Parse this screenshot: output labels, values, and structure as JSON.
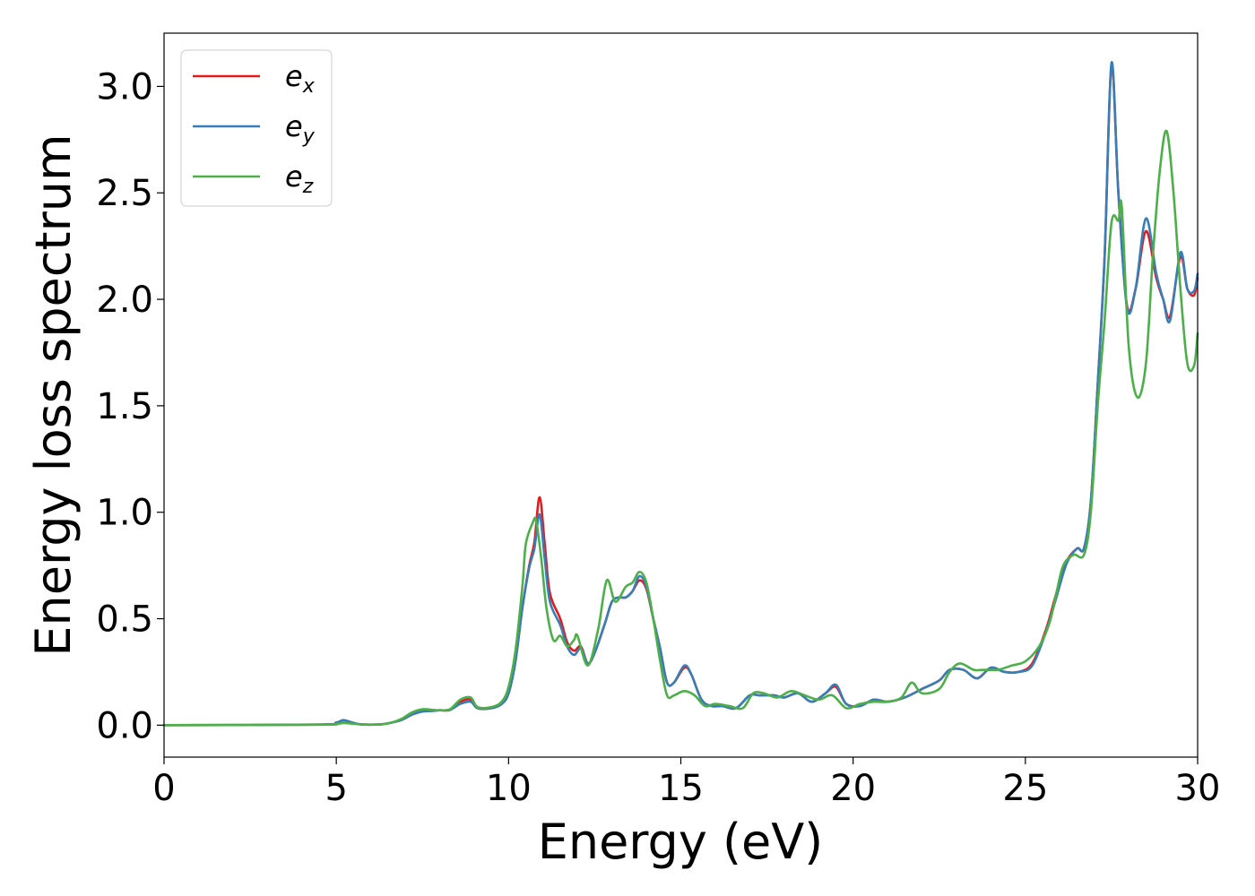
{
  "chart_data": {
    "type": "line",
    "title": "",
    "xlabel": "Energy (eV)",
    "ylabel": "Energy loss spectrum",
    "xlim": [
      0,
      30
    ],
    "ylim": [
      -0.15,
      3.25
    ],
    "xticks": [
      0,
      5,
      10,
      15,
      20,
      25,
      30
    ],
    "yticks": [
      0.0,
      0.5,
      1.0,
      1.5,
      2.0,
      2.5,
      3.0
    ],
    "xtick_labels": [
      "0",
      "5",
      "10",
      "15",
      "20",
      "25",
      "30"
    ],
    "ytick_labels": [
      "0.0",
      "0.5",
      "1.0",
      "1.5",
      "2.0",
      "2.5",
      "3.0"
    ],
    "grid": false,
    "legend_position": "top-left",
    "series": [
      {
        "name": "e_x",
        "legend_base": "e",
        "legend_sub": "x",
        "color": "#e41a1c",
        "points": [
          [
            0,
            0
          ],
          [
            4.5,
            0.003
          ],
          [
            5.0,
            0.012
          ],
          [
            5.2,
            0.022
          ],
          [
            5.4,
            0.015
          ],
          [
            5.7,
            0.004
          ],
          [
            6.3,
            0.004
          ],
          [
            6.6,
            0.012
          ],
          [
            6.9,
            0.025
          ],
          [
            7.2,
            0.05
          ],
          [
            7.5,
            0.065
          ],
          [
            7.8,
            0.068
          ],
          [
            8.0,
            0.07
          ],
          [
            8.3,
            0.072
          ],
          [
            8.6,
            0.11
          ],
          [
            8.9,
            0.12
          ],
          [
            9.1,
            0.08
          ],
          [
            9.5,
            0.08
          ],
          [
            9.8,
            0.1
          ],
          [
            10.0,
            0.15
          ],
          [
            10.2,
            0.3
          ],
          [
            10.4,
            0.55
          ],
          [
            10.6,
            0.75
          ],
          [
            10.75,
            0.86
          ],
          [
            10.9,
            1.07
          ],
          [
            11.05,
            0.85
          ],
          [
            11.2,
            0.62
          ],
          [
            11.5,
            0.5
          ],
          [
            11.7,
            0.39
          ],
          [
            11.9,
            0.35
          ],
          [
            12.1,
            0.37
          ],
          [
            12.3,
            0.29
          ],
          [
            12.5,
            0.34
          ],
          [
            12.8,
            0.48
          ],
          [
            13.0,
            0.58
          ],
          [
            13.2,
            0.6
          ],
          [
            13.4,
            0.6
          ],
          [
            13.6,
            0.63
          ],
          [
            13.8,
            0.68
          ],
          [
            14.0,
            0.64
          ],
          [
            14.2,
            0.5
          ],
          [
            14.4,
            0.36
          ],
          [
            14.6,
            0.2
          ],
          [
            14.8,
            0.2
          ],
          [
            15.1,
            0.27
          ],
          [
            15.3,
            0.24
          ],
          [
            15.6,
            0.12
          ],
          [
            15.9,
            0.09
          ],
          [
            16.2,
            0.09
          ],
          [
            16.6,
            0.08
          ],
          [
            17.0,
            0.14
          ],
          [
            17.3,
            0.14
          ],
          [
            17.7,
            0.14
          ],
          [
            18.0,
            0.13
          ],
          [
            18.4,
            0.15
          ],
          [
            18.8,
            0.11
          ],
          [
            19.2,
            0.15
          ],
          [
            19.5,
            0.18
          ],
          [
            19.8,
            0.1
          ],
          [
            20.2,
            0.09
          ],
          [
            20.6,
            0.12
          ],
          [
            21.0,
            0.11
          ],
          [
            21.5,
            0.13
          ],
          [
            22.0,
            0.17
          ],
          [
            22.5,
            0.21
          ],
          [
            22.8,
            0.26
          ],
          [
            23.2,
            0.26
          ],
          [
            23.6,
            0.22
          ],
          [
            24.0,
            0.27
          ],
          [
            24.4,
            0.25
          ],
          [
            24.8,
            0.25
          ],
          [
            25.2,
            0.29
          ],
          [
            25.6,
            0.45
          ],
          [
            25.9,
            0.62
          ],
          [
            26.2,
            0.77
          ],
          [
            26.5,
            0.83
          ],
          [
            26.7,
            0.83
          ],
          [
            26.9,
            1.05
          ],
          [
            27.1,
            1.6
          ],
          [
            27.3,
            2.2
          ],
          [
            27.5,
            3.1
          ],
          [
            27.7,
            2.5
          ],
          [
            27.95,
            1.97
          ],
          [
            28.2,
            2.05
          ],
          [
            28.5,
            2.32
          ],
          [
            28.8,
            2.1
          ],
          [
            29.0,
            2.0
          ],
          [
            29.2,
            1.92
          ],
          [
            29.5,
            2.2
          ],
          [
            29.7,
            2.05
          ],
          [
            29.9,
            2.02
          ],
          [
            30.0,
            2.1
          ]
        ]
      },
      {
        "name": "e_y",
        "legend_base": "e",
        "legend_sub": "y",
        "color": "#377eb8",
        "points": [
          [
            0,
            0
          ],
          [
            4.5,
            0.003
          ],
          [
            5.0,
            0.013
          ],
          [
            5.2,
            0.024
          ],
          [
            5.4,
            0.016
          ],
          [
            5.7,
            0.004
          ],
          [
            6.3,
            0.004
          ],
          [
            6.6,
            0.012
          ],
          [
            6.9,
            0.025
          ],
          [
            7.2,
            0.05
          ],
          [
            7.5,
            0.064
          ],
          [
            7.8,
            0.067
          ],
          [
            8.0,
            0.07
          ],
          [
            8.3,
            0.072
          ],
          [
            8.6,
            0.1
          ],
          [
            8.9,
            0.11
          ],
          [
            9.1,
            0.08
          ],
          [
            9.5,
            0.08
          ],
          [
            9.8,
            0.1
          ],
          [
            10.0,
            0.15
          ],
          [
            10.2,
            0.3
          ],
          [
            10.4,
            0.55
          ],
          [
            10.6,
            0.74
          ],
          [
            10.75,
            0.83
          ],
          [
            10.9,
            0.99
          ],
          [
            11.05,
            0.78
          ],
          [
            11.2,
            0.58
          ],
          [
            11.5,
            0.47
          ],
          [
            11.7,
            0.37
          ],
          [
            11.9,
            0.33
          ],
          [
            12.1,
            0.36
          ],
          [
            12.3,
            0.29
          ],
          [
            12.5,
            0.34
          ],
          [
            12.8,
            0.48
          ],
          [
            13.0,
            0.58
          ],
          [
            13.2,
            0.6
          ],
          [
            13.4,
            0.6
          ],
          [
            13.6,
            0.63
          ],
          [
            13.8,
            0.7
          ],
          [
            14.0,
            0.65
          ],
          [
            14.2,
            0.5
          ],
          [
            14.4,
            0.36
          ],
          [
            14.6,
            0.2
          ],
          [
            14.8,
            0.2
          ],
          [
            15.1,
            0.28
          ],
          [
            15.3,
            0.24
          ],
          [
            15.6,
            0.12
          ],
          [
            15.9,
            0.09
          ],
          [
            16.2,
            0.09
          ],
          [
            16.6,
            0.08
          ],
          [
            17.0,
            0.14
          ],
          [
            17.3,
            0.14
          ],
          [
            17.7,
            0.14
          ],
          [
            18.0,
            0.13
          ],
          [
            18.4,
            0.15
          ],
          [
            18.8,
            0.11
          ],
          [
            19.2,
            0.15
          ],
          [
            19.5,
            0.19
          ],
          [
            19.8,
            0.1
          ],
          [
            20.2,
            0.09
          ],
          [
            20.6,
            0.12
          ],
          [
            21.0,
            0.11
          ],
          [
            21.5,
            0.13
          ],
          [
            22.0,
            0.17
          ],
          [
            22.5,
            0.21
          ],
          [
            22.8,
            0.26
          ],
          [
            23.2,
            0.26
          ],
          [
            23.6,
            0.22
          ],
          [
            24.0,
            0.27
          ],
          [
            24.4,
            0.25
          ],
          [
            24.8,
            0.25
          ],
          [
            25.2,
            0.28
          ],
          [
            25.6,
            0.44
          ],
          [
            25.9,
            0.6
          ],
          [
            26.2,
            0.76
          ],
          [
            26.5,
            0.83
          ],
          [
            26.7,
            0.83
          ],
          [
            26.9,
            1.05
          ],
          [
            27.1,
            1.6
          ],
          [
            27.3,
            2.2
          ],
          [
            27.5,
            3.11
          ],
          [
            27.7,
            2.5
          ],
          [
            27.95,
            1.96
          ],
          [
            28.2,
            2.05
          ],
          [
            28.5,
            2.38
          ],
          [
            28.8,
            2.12
          ],
          [
            29.0,
            2.0
          ],
          [
            29.2,
            1.9
          ],
          [
            29.5,
            2.22
          ],
          [
            29.7,
            2.05
          ],
          [
            29.9,
            2.04
          ],
          [
            30.0,
            2.12
          ]
        ]
      },
      {
        "name": "e_z",
        "legend_base": "e",
        "legend_sub": "z",
        "color": "#4daf4a",
        "points": [
          [
            0,
            0
          ],
          [
            4.5,
            0.002
          ],
          [
            5.0,
            0.006
          ],
          [
            5.2,
            0.01
          ],
          [
            5.4,
            0.008
          ],
          [
            5.7,
            0.004
          ],
          [
            6.3,
            0.004
          ],
          [
            6.6,
            0.012
          ],
          [
            6.9,
            0.03
          ],
          [
            7.2,
            0.06
          ],
          [
            7.5,
            0.075
          ],
          [
            7.8,
            0.072
          ],
          [
            8.0,
            0.07
          ],
          [
            8.3,
            0.075
          ],
          [
            8.6,
            0.12
          ],
          [
            8.9,
            0.13
          ],
          [
            9.1,
            0.085
          ],
          [
            9.5,
            0.085
          ],
          [
            9.8,
            0.11
          ],
          [
            10.0,
            0.18
          ],
          [
            10.2,
            0.35
          ],
          [
            10.4,
            0.65
          ],
          [
            10.5,
            0.85
          ],
          [
            10.7,
            0.95
          ],
          [
            10.8,
            0.96
          ],
          [
            10.95,
            0.78
          ],
          [
            11.1,
            0.55
          ],
          [
            11.3,
            0.4
          ],
          [
            11.5,
            0.42
          ],
          [
            11.7,
            0.37
          ],
          [
            11.9,
            0.4
          ],
          [
            12.0,
            0.42
          ],
          [
            12.3,
            0.28
          ],
          [
            12.6,
            0.45
          ],
          [
            12.85,
            0.68
          ],
          [
            13.1,
            0.58
          ],
          [
            13.4,
            0.65
          ],
          [
            13.6,
            0.67
          ],
          [
            13.8,
            0.72
          ],
          [
            14.0,
            0.67
          ],
          [
            14.2,
            0.5
          ],
          [
            14.4,
            0.3
          ],
          [
            14.6,
            0.14
          ],
          [
            14.8,
            0.14
          ],
          [
            15.1,
            0.16
          ],
          [
            15.4,
            0.14
          ],
          [
            15.7,
            0.09
          ],
          [
            16.0,
            0.1
          ],
          [
            16.4,
            0.09
          ],
          [
            16.8,
            0.08
          ],
          [
            17.1,
            0.15
          ],
          [
            17.4,
            0.15
          ],
          [
            17.8,
            0.13
          ],
          [
            18.2,
            0.16
          ],
          [
            18.6,
            0.14
          ],
          [
            19.0,
            0.12
          ],
          [
            19.4,
            0.14
          ],
          [
            19.8,
            0.08
          ],
          [
            20.2,
            0.1
          ],
          [
            20.6,
            0.11
          ],
          [
            21.0,
            0.11
          ],
          [
            21.4,
            0.13
          ],
          [
            21.7,
            0.2
          ],
          [
            22.0,
            0.15
          ],
          [
            22.5,
            0.17
          ],
          [
            22.8,
            0.25
          ],
          [
            23.1,
            0.29
          ],
          [
            23.5,
            0.26
          ],
          [
            23.8,
            0.26
          ],
          [
            24.2,
            0.26
          ],
          [
            24.6,
            0.28
          ],
          [
            25.0,
            0.3
          ],
          [
            25.4,
            0.37
          ],
          [
            25.7,
            0.48
          ],
          [
            25.9,
            0.62
          ],
          [
            26.1,
            0.75
          ],
          [
            26.4,
            0.8
          ],
          [
            26.7,
            0.8
          ],
          [
            26.9,
            1.0
          ],
          [
            27.1,
            1.5
          ],
          [
            27.3,
            1.9
          ],
          [
            27.5,
            2.36
          ],
          [
            27.7,
            2.37
          ],
          [
            27.8,
            2.43
          ],
          [
            28.0,
            1.78
          ],
          [
            28.25,
            1.54
          ],
          [
            28.5,
            1.7
          ],
          [
            28.7,
            2.2
          ],
          [
            28.9,
            2.6
          ],
          [
            29.1,
            2.79
          ],
          [
            29.3,
            2.5
          ],
          [
            29.5,
            2.05
          ],
          [
            29.7,
            1.7
          ],
          [
            29.9,
            1.69
          ],
          [
            30.0,
            1.84
          ]
        ]
      }
    ]
  }
}
